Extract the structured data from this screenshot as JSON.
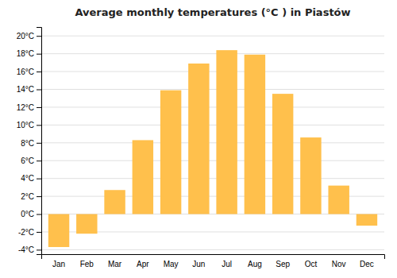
{
  "chart_data": {
    "type": "bar",
    "title": "Average monthly temperatures (°C ) in Piastów",
    "categories": [
      "Jan",
      "Feb",
      "Mar",
      "Apr",
      "May",
      "Jun",
      "Jul",
      "Aug",
      "Sep",
      "Oct",
      "Nov",
      "Dec"
    ],
    "values": [
      -3.7,
      -2.2,
      2.7,
      8.3,
      13.9,
      16.9,
      18.4,
      17.9,
      13.5,
      8.6,
      3.2,
      -1.3
    ],
    "color": "#FFC04C",
    "ylim": [
      -4.5,
      21
    ],
    "yticks": [
      {
        "value": -4,
        "label": "-4°C"
      },
      {
        "value": -2,
        "label": "-2°C"
      },
      {
        "value": 0,
        "label": "0°C"
      },
      {
        "value": 2,
        "label": "2°C"
      },
      {
        "value": 4,
        "label": "4°C"
      },
      {
        "value": 6,
        "label": "6°C"
      },
      {
        "value": 8,
        "label": "8°C"
      },
      {
        "value": 10,
        "label": "10°C"
      },
      {
        "value": 12,
        "label": "12°C"
      },
      {
        "value": 14,
        "label": "14°C"
      },
      {
        "value": 16,
        "label": "16°C"
      },
      {
        "value": 18,
        "label": "18°C"
      },
      {
        "value": 20,
        "label": "20°C"
      }
    ],
    "grid": true
  }
}
